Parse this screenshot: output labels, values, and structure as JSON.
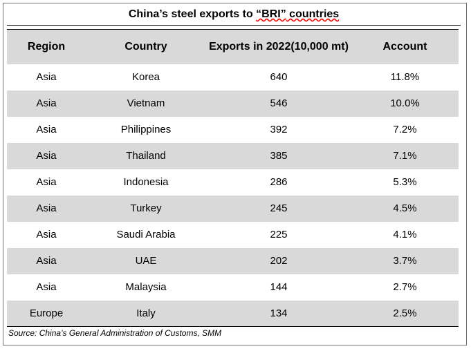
{
  "table": {
    "title_prefix": "China’s steel exports to ",
    "title_highlight": "“BRI”",
    "title_suffix": " countries",
    "headers": {
      "region": "Region",
      "country": "Country",
      "exports": "Exports in 2022(10,000 mt)",
      "account": "Account"
    },
    "rows": [
      {
        "region": "Asia",
        "country": "Korea",
        "exports": "640",
        "account": "11.8%"
      },
      {
        "region": "Asia",
        "country": "Vietnam",
        "exports": "546",
        "account": "10.0%"
      },
      {
        "region": "Asia",
        "country": "Philippines",
        "exports": "392",
        "account": "7.2%"
      },
      {
        "region": "Asia",
        "country": "Thailand",
        "exports": "385",
        "account": "7.1%"
      },
      {
        "region": "Asia",
        "country": "Indonesia",
        "exports": "286",
        "account": "5.3%"
      },
      {
        "region": "Asia",
        "country": "Turkey",
        "exports": "245",
        "account": "4.5%"
      },
      {
        "region": "Asia",
        "country": "Saudi Arabia",
        "exports": "225",
        "account": "4.1%"
      },
      {
        "region": "Asia",
        "country": "UAE",
        "exports": "202",
        "account": "3.7%"
      },
      {
        "region": "Asia",
        "country": "Malaysia",
        "exports": "144",
        "account": "2.7%"
      },
      {
        "region": "Europe",
        "country": "Italy",
        "exports": "134",
        "account": "2.5%"
      }
    ],
    "source": "Source: China’s General Administration of Customs, SMM"
  },
  "colors": {
    "header_bg": "#d9d9d9",
    "stripe_bg": "#d9d9d9",
    "rule": "#000000"
  }
}
